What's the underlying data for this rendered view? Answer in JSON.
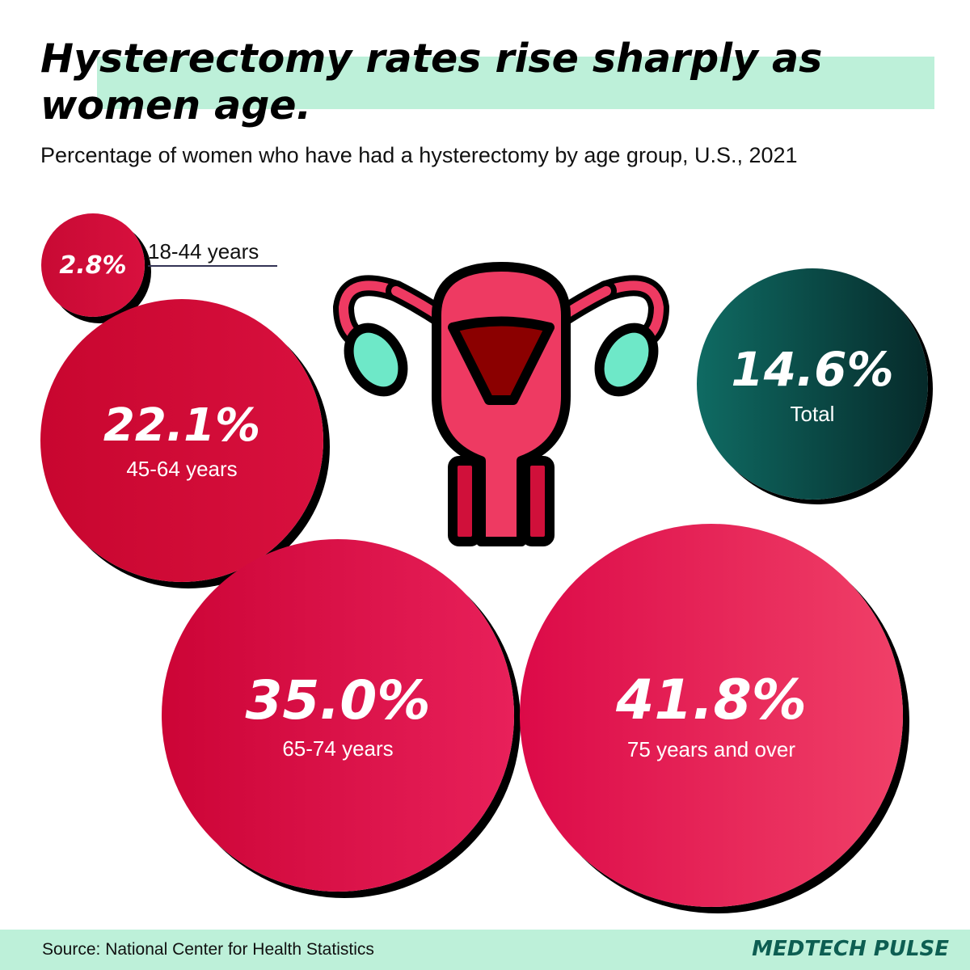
{
  "header": {
    "title": "Hysterectomy rates rise sharply as women age.",
    "subtitle": "Percentage of women who have had a hysterectomy by age group, U.S., 2021"
  },
  "chart_data": {
    "type": "bubble",
    "title": "Hysterectomy rates rise sharply as women age.",
    "subtitle": "Percentage of women who have had a hysterectomy by age group, U.S., 2021",
    "categories": [
      "18-44 years",
      "45-64 years",
      "65-74 years",
      "75 years and over",
      "Total"
    ],
    "values": [
      2.8,
      22.1,
      35.0,
      41.8,
      14.6
    ],
    "value_labels": [
      "2.8%",
      "22.1%",
      "35.0%",
      "41.8%",
      "14.6%"
    ],
    "colors": [
      "#d0103a",
      "#cc0a34",
      "#d8063f",
      "#e8285a",
      "#0a4f4b"
    ]
  },
  "icon": "uterus-icon",
  "footer": {
    "source": "Source: National Center for Health Statistics",
    "brand": "MEDTECH PULSE"
  }
}
